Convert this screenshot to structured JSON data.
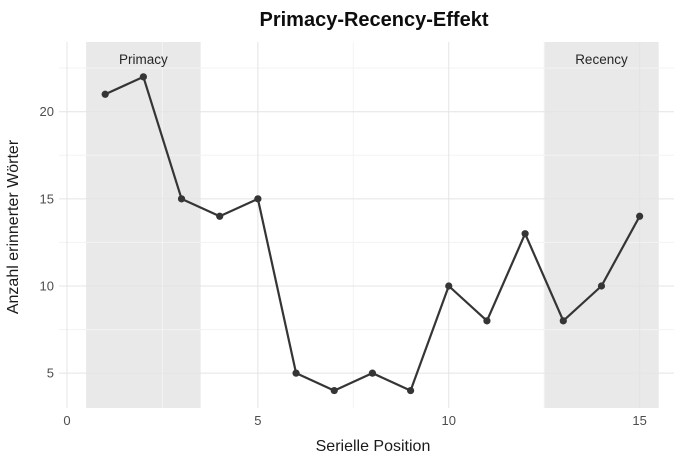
{
  "chart_data": {
    "type": "line",
    "title": "Primacy-Recency-Effekt",
    "xlabel": "Serielle Position",
    "ylabel": "Anzahl erinnerter Wörter",
    "x": [
      1,
      2,
      3,
      4,
      5,
      6,
      7,
      8,
      9,
      10,
      11,
      12,
      13,
      14,
      15
    ],
    "values": [
      21,
      22,
      15,
      14,
      15,
      5,
      4,
      5,
      4,
      10,
      8,
      13,
      8,
      10,
      14
    ],
    "xticks": [
      0,
      5,
      10,
      15
    ],
    "yticks": [
      5,
      10,
      15,
      20
    ],
    "xlim": [
      -0.21,
      15.9
    ],
    "ylim": [
      3,
      24
    ],
    "x_minor_ticks": [
      2.5,
      7.5,
      12.5
    ],
    "y_minor_ticks": [
      7.5,
      12.5,
      17.5,
      22.5
    ],
    "grid": true,
    "legend": "none",
    "regions": [
      {
        "label": "Primacy",
        "x_start": 0.5,
        "x_end": 3.5,
        "label_x": 2,
        "label_y": 23
      },
      {
        "label": "Recency",
        "x_start": 12.5,
        "x_end": 15.5,
        "label_x": 14,
        "label_y": 23
      }
    ],
    "colors": {
      "line": "#353535",
      "point": "#353535",
      "region_fill": "#e9e9e9",
      "grid_major": "#e4e4e4",
      "grid_minor": "#f3f3f3",
      "tick_label": "#4d4d4d",
      "title": "#0d0d0d"
    }
  }
}
